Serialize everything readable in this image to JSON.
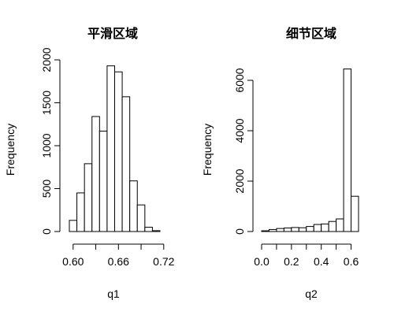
{
  "chart_data": [
    {
      "type": "bar",
      "title": "平滑区域",
      "xlabel": "q1",
      "ylabel": "Frequency",
      "bin_edges": [
        0.595,
        0.605,
        0.615,
        0.625,
        0.635,
        0.645,
        0.655,
        0.665,
        0.675,
        0.685,
        0.695,
        0.705,
        0.715
      ],
      "values": [
        130,
        450,
        790,
        1340,
        1170,
        1930,
        1860,
        1570,
        590,
        310,
        50,
        10
      ],
      "xlim": [
        0.595,
        0.715
      ],
      "ylim": [
        0,
        2000
      ],
      "x_ticks": [
        0.6,
        0.66,
        0.72
      ],
      "x_tick_labels": [
        "0.60",
        "0.66",
        "0.72"
      ],
      "y_ticks": [
        0,
        500,
        1000,
        1500,
        2000
      ],
      "y_tick_labels": [
        "0",
        "500",
        "1000",
        "1500",
        "2000"
      ]
    },
    {
      "type": "bar",
      "title": "细节区域",
      "xlabel": "q2",
      "ylabel": "Frequency",
      "bin_edges": [
        0.0,
        0.05,
        0.1,
        0.15,
        0.2,
        0.25,
        0.3,
        0.35,
        0.4,
        0.45,
        0.5,
        0.55,
        0.6,
        0.65
      ],
      "values": [
        30,
        80,
        120,
        140,
        160,
        150,
        200,
        280,
        300,
        400,
        500,
        6450,
        1400
      ],
      "xlim": [
        0.0,
        0.65
      ],
      "ylim": [
        0,
        6000
      ],
      "x_ticks": [
        0.0,
        0.2,
        0.4,
        0.6
      ],
      "x_tick_labels": [
        "0.0",
        "0.2",
        "0.4",
        "0.6"
      ],
      "y_ticks": [
        0,
        2000,
        4000,
        6000
      ],
      "y_tick_labels": [
        "0",
        "2000",
        "4000",
        "6000"
      ]
    }
  ]
}
